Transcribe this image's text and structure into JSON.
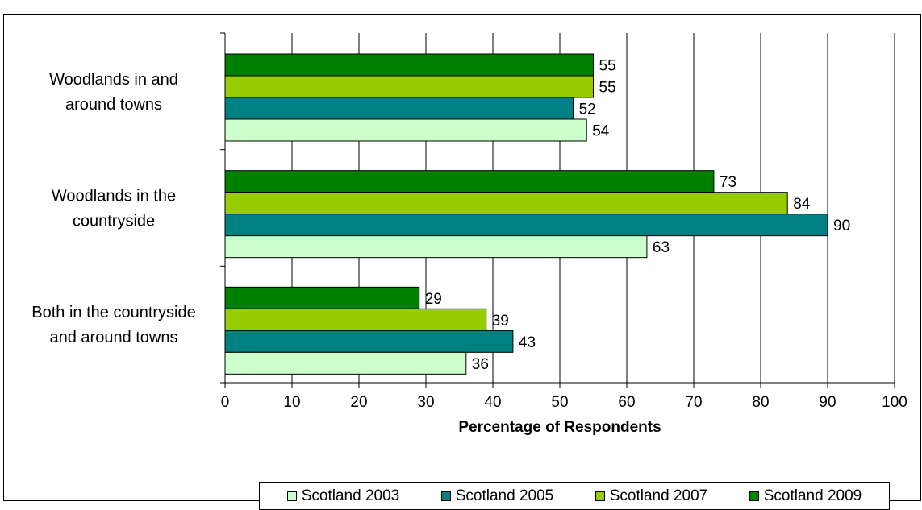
{
  "chart_data": {
    "type": "bar",
    "orientation": "horizontal",
    "title": "",
    "xlabel": "Percentage of Respondents",
    "ylabel": "",
    "xlim": [
      0,
      100
    ],
    "x_ticks": [
      0,
      10,
      20,
      30,
      40,
      50,
      60,
      70,
      80,
      90,
      100
    ],
    "grid": true,
    "legend_position": "bottom",
    "categories": [
      [
        "Woodlands in and",
        "around towns"
      ],
      [
        "Woodlands in the",
        "countryside"
      ],
      [
        "Both in the countryside",
        "and around towns"
      ]
    ],
    "series": [
      {
        "name": "Scotland 2003",
        "color": "#ccffcc",
        "values": [
          54,
          63,
          36
        ]
      },
      {
        "name": "Scotland 2005",
        "color": "#008080",
        "values": [
          52,
          90,
          43
        ]
      },
      {
        "name": "Scotland 2007",
        "color": "#99cc00",
        "values": [
          55,
          84,
          39
        ]
      },
      {
        "name": "Scotland 2009",
        "color": "#008000",
        "values": [
          55,
          73,
          29
        ]
      }
    ]
  }
}
